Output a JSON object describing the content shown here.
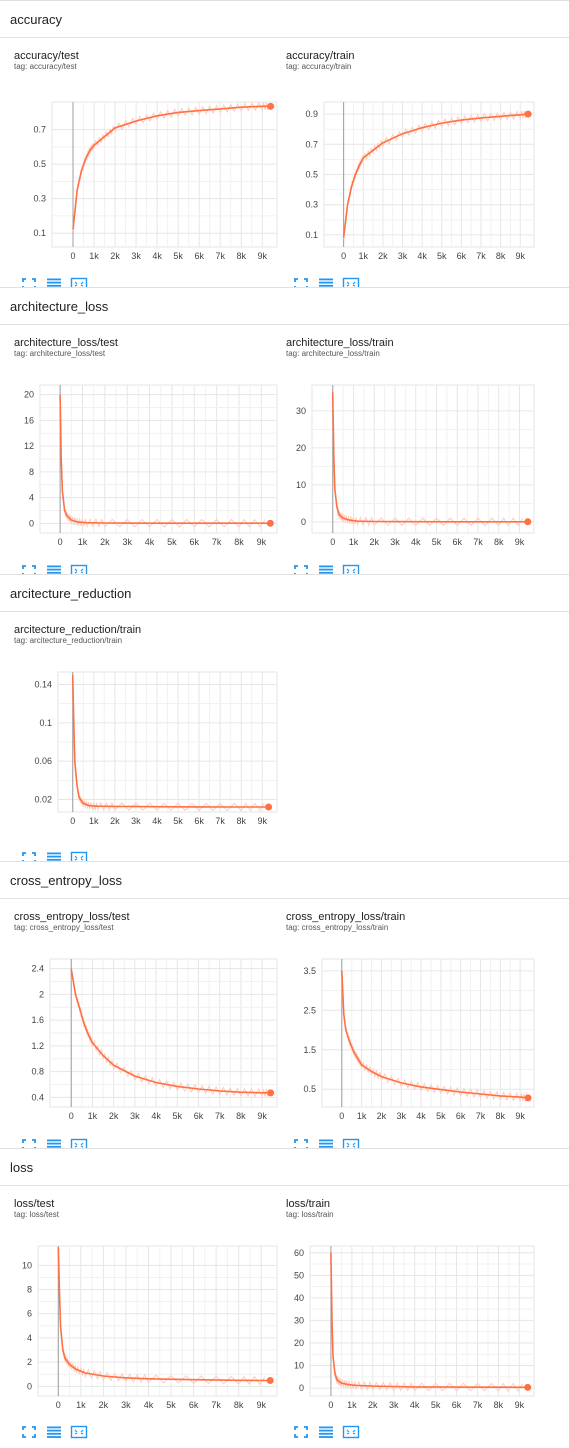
{
  "sections": [
    {
      "title": "accuracy",
      "cards": [
        {
          "title": "accuracy/test",
          "tag": "tag: accuracy/test",
          "chart_data": {
            "type": "line",
            "y_ticks": [
              "0.1",
              "0.3",
              "0.5",
              "0.7"
            ],
            "y_tick_values": [
              0.1,
              0.3,
              0.5,
              0.7
            ],
            "ylim": [
              0.02,
              0.86
            ],
            "x_ticks": [
              "0",
              "1k",
              "2k",
              "3k",
              "4k",
              "5k",
              "6k",
              "7k",
              "8k",
              "9k"
            ],
            "xlim": [
              -1000,
              9700
            ],
            "series": [
              {
                "x": [
                  0,
                  200,
                  400,
                  600,
                  800,
                  1000,
                  1500,
                  2000,
                  3000,
                  4000,
                  5000,
                  6000,
                  7000,
                  8000,
                  9000,
                  9400
                ],
                "y": [
                  0.12,
                  0.35,
                  0.46,
                  0.53,
                  0.58,
                  0.61,
                  0.66,
                  0.71,
                  0.75,
                  0.78,
                  0.8,
                  0.81,
                  0.82,
                  0.83,
                  0.835,
                  0.835
                ]
              }
            ]
          }
        },
        {
          "title": "accuracy/train",
          "tag": "tag: accuracy/train",
          "chart_data": {
            "type": "line",
            "y_ticks": [
              "0.1",
              "0.3",
              "0.5",
              "0.7",
              "0.9"
            ],
            "y_tick_values": [
              0.1,
              0.3,
              0.5,
              0.7,
              0.9
            ],
            "ylim": [
              0.02,
              0.98
            ],
            "x_ticks": [
              "0",
              "1k",
              "2k",
              "3k",
              "4k",
              "5k",
              "6k",
              "7k",
              "8k",
              "9k"
            ],
            "xlim": [
              -1000,
              9700
            ],
            "series": [
              {
                "x": [
                  0,
                  200,
                  400,
                  600,
                  800,
                  1000,
                  1500,
                  2000,
                  3000,
                  4000,
                  5000,
                  6000,
                  7000,
                  8000,
                  9000,
                  9400
                ],
                "y": [
                  0.08,
                  0.3,
                  0.42,
                  0.5,
                  0.56,
                  0.61,
                  0.66,
                  0.71,
                  0.77,
                  0.81,
                  0.84,
                  0.86,
                  0.875,
                  0.885,
                  0.895,
                  0.9
                ]
              }
            ]
          }
        }
      ]
    },
    {
      "title": "architecture_loss",
      "cards": [
        {
          "title": "architecture_loss/test",
          "tag": "tag: architecture_loss/test",
          "chart_data": {
            "type": "line",
            "y_ticks": [
              "0",
              "4",
              "8",
              "12",
              "16",
              "20"
            ],
            "y_tick_values": [
              0,
              4,
              8,
              12,
              16,
              20
            ],
            "ylim": [
              -1.5,
              21.5
            ],
            "x_ticks": [
              "0",
              "1k",
              "2k",
              "3k",
              "4k",
              "5k",
              "6k",
              "7k",
              "8k",
              "9k"
            ],
            "xlim": [
              -900,
              9700
            ],
            "series": [
              {
                "x": [
                  0,
                  50,
                  100,
                  200,
                  300,
                  500,
                  800,
                  1200,
                  2000,
                  4000,
                  6000,
                  8000,
                  9400
                ],
                "y": [
                  20,
                  10,
                  5,
                  2,
                  1.2,
                  0.5,
                  0.2,
                  0.1,
                  0.05,
                  0.03,
                  0.02,
                  0.02,
                  0.02
                ]
              }
            ]
          }
        },
        {
          "title": "architecture_loss/train",
          "tag": "tag: architecture_loss/train",
          "chart_data": {
            "type": "line",
            "y_ticks": [
              "0",
              "10",
              "20",
              "30"
            ],
            "y_tick_values": [
              0,
              10,
              20,
              30
            ],
            "ylim": [
              -3,
              37
            ],
            "x_ticks": [
              "0",
              "1k",
              "2k",
              "3k",
              "4k",
              "5k",
              "6k",
              "7k",
              "8k",
              "9k"
            ],
            "xlim": [
              -1000,
              9700
            ],
            "series": [
              {
                "x": [
                  0,
                  50,
                  100,
                  200,
                  300,
                  500,
                  800,
                  1200,
                  2000,
                  4000,
                  6000,
                  8000,
                  9400
                ],
                "y": [
                  35,
                  18,
                  9,
                  4,
                  2,
                  1,
                  0.5,
                  0.2,
                  0.1,
                  0.05,
                  0.03,
                  0.03,
                  0.03
                ]
              }
            ]
          }
        }
      ]
    },
    {
      "title": "arcitecture_reduction",
      "cards": [
        {
          "title": "arcitecture_reduction/train",
          "tag": "tag: arcitecture_reduction/train",
          "chart_data": {
            "type": "line",
            "y_ticks": [
              "0.02",
              "0.06",
              "0.1",
              "0.14"
            ],
            "y_tick_values": [
              0.02,
              0.06,
              0.1,
              0.14
            ],
            "ylim": [
              0.007,
              0.153
            ],
            "x_ticks": [
              "0",
              "1k",
              "2k",
              "3k",
              "4k",
              "5k",
              "6k",
              "7k",
              "8k",
              "9k"
            ],
            "xlim": [
              -700,
              9700
            ],
            "series": [
              {
                "x": [
                  0,
                  50,
                  100,
                  200,
                  300,
                  500,
                  800,
                  1200,
                  2000,
                  4000,
                  6000,
                  8000,
                  9300
                ],
                "y": [
                  0.15,
                  0.1,
                  0.06,
                  0.035,
                  0.022,
                  0.016,
                  0.0135,
                  0.013,
                  0.0128,
                  0.0125,
                  0.0123,
                  0.0122,
                  0.0122
                ]
              }
            ]
          }
        }
      ]
    },
    {
      "title": "cross_entropy_loss",
      "cards": [
        {
          "title": "cross_entropy_loss/test",
          "tag": "tag: cross_entropy_loss/test",
          "chart_data": {
            "type": "line",
            "y_ticks": [
              "0.4",
              "0.8",
              "1.2",
              "1.6",
              "2",
              "2.4"
            ],
            "y_tick_values": [
              0.4,
              0.8,
              1.2,
              1.6,
              2,
              2.4
            ],
            "ylim": [
              0.25,
              2.55
            ],
            "x_ticks": [
              "0",
              "1k",
              "2k",
              "3k",
              "4k",
              "5k",
              "6k",
              "7k",
              "8k",
              "9k"
            ],
            "xlim": [
              -1000,
              9700
            ],
            "series": [
              {
                "x": [
                  0,
                  200,
                  400,
                  600,
                  800,
                  1000,
                  1500,
                  2000,
                  3000,
                  4000,
                  5000,
                  6000,
                  7000,
                  8000,
                  9000,
                  9400
                ],
                "y": [
                  2.4,
                  2.0,
                  1.78,
                  1.55,
                  1.38,
                  1.25,
                  1.05,
                  0.9,
                  0.73,
                  0.63,
                  0.57,
                  0.53,
                  0.5,
                  0.48,
                  0.47,
                  0.47
                ]
              }
            ]
          }
        },
        {
          "title": "cross_entropy_loss/train",
          "tag": "tag: cross_entropy_loss/train",
          "chart_data": {
            "type": "line",
            "y_ticks": [
              "0.5",
              "1.5",
              "2.5",
              "3.5"
            ],
            "y_tick_values": [
              0.5,
              1.5,
              2.5,
              3.5
            ],
            "ylim": [
              0.05,
              3.8
            ],
            "x_ticks": [
              "0",
              "1k",
              "2k",
              "3k",
              "4k",
              "5k",
              "6k",
              "7k",
              "8k",
              "9k"
            ],
            "xlim": [
              -1000,
              9700
            ],
            "series": [
              {
                "x": [
                  0,
                  100,
                  200,
                  400,
                  600,
                  800,
                  1000,
                  1500,
                  2000,
                  3000,
                  4000,
                  5000,
                  6000,
                  7000,
                  8000,
                  9000,
                  9400
                ],
                "y": [
                  3.5,
                  2.4,
                  2.0,
                  1.7,
                  1.45,
                  1.28,
                  1.12,
                  0.95,
                  0.82,
                  0.66,
                  0.56,
                  0.49,
                  0.43,
                  0.38,
                  0.33,
                  0.3,
                  0.28
                ]
              }
            ]
          }
        }
      ]
    },
    {
      "title": "loss",
      "cards": [
        {
          "title": "loss/test",
          "tag": "tag: loss/test",
          "chart_data": {
            "type": "line",
            "y_ticks": [
              "0",
              "2",
              "4",
              "6",
              "8",
              "10"
            ],
            "y_tick_values": [
              0,
              2,
              4,
              6,
              8,
              10
            ],
            "ylim": [
              -0.8,
              11.6
            ],
            "x_ticks": [
              "0",
              "1k",
              "2k",
              "3k",
              "4k",
              "5k",
              "6k",
              "7k",
              "8k",
              "9k"
            ],
            "xlim": [
              -900,
              9700
            ],
            "series": [
              {
                "x": [
                  0,
                  50,
                  100,
                  200,
                  300,
                  500,
                  800,
                  1200,
                  2000,
                  3000,
                  4000,
                  6000,
                  8000,
                  9400
                ],
                "y": [
                  11.5,
                  8,
                  5,
                  3,
                  2.3,
                  1.8,
                  1.4,
                  1.1,
                  0.85,
                  0.7,
                  0.62,
                  0.55,
                  0.5,
                  0.48
                ]
              }
            ]
          }
        },
        {
          "title": "loss/train",
          "tag": "tag: loss/train",
          "chart_data": {
            "type": "line",
            "y_ticks": [
              "0",
              "10",
              "20",
              "30",
              "40",
              "50",
              "60"
            ],
            "y_tick_values": [
              0,
              10,
              20,
              30,
              40,
              50,
              60
            ],
            "ylim": [
              -3.5,
              63
            ],
            "x_ticks": [
              "0",
              "1k",
              "2k",
              "3k",
              "4k",
              "5k",
              "6k",
              "7k",
              "8k",
              "9k"
            ],
            "xlim": [
              -1000,
              9700
            ],
            "series": [
              {
                "x": [
                  0,
                  50,
                  100,
                  200,
                  300,
                  500,
                  800,
                  1200,
                  2000,
                  3000,
                  4000,
                  6000,
                  8000,
                  9400
                ],
                "y": [
                  60,
                  30,
                  14,
                  6,
                  3.5,
                  2.2,
                  1.6,
                  1.2,
                  0.9,
                  0.7,
                  0.55,
                  0.45,
                  0.38,
                  0.35
                ]
              }
            ]
          }
        }
      ]
    }
  ],
  "colors": {
    "line": "#ff7043",
    "line_faint": "#ffccbc",
    "grid": "#e6e6e6",
    "axis": "#9e9e9e",
    "icon": "#2196f3"
  },
  "button_icons": [
    "fullscreen-icon",
    "data-table-icon",
    "fit-domain-icon"
  ]
}
